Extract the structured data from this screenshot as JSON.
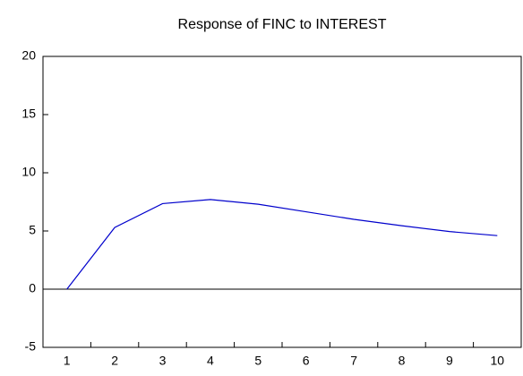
{
  "chart_data": {
    "type": "line",
    "title": "Response of FINC to INTEREST",
    "categories": [
      1,
      2,
      3,
      4,
      5,
      6,
      7,
      8,
      9,
      10
    ],
    "values": [
      0,
      5.3,
      7.35,
      7.7,
      7.3,
      6.65,
      6.0,
      5.45,
      4.95,
      4.6
    ],
    "color": "#0000cc",
    "ylim": [
      -5,
      20
    ],
    "yticks": [
      -5,
      0,
      5,
      10,
      15,
      20
    ],
    "grid": false
  }
}
